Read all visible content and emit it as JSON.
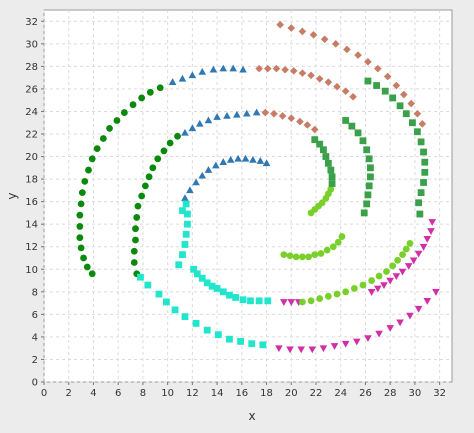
{
  "chart_data": {
    "type": "scatter",
    "title": "",
    "xlabel": "x",
    "ylabel": "y",
    "xlim": [
      0,
      33
    ],
    "ylim": [
      0,
      33
    ],
    "xticks": [
      0,
      2,
      4,
      6,
      8,
      10,
      12,
      14,
      16,
      18,
      20,
      22,
      24,
      26,
      28,
      30,
      32
    ],
    "yticks": [
      0,
      2,
      4,
      6,
      8,
      10,
      12,
      14,
      16,
      18,
      20,
      22,
      24,
      26,
      28,
      30,
      32
    ],
    "grid": true,
    "legend": "none",
    "series": [
      {
        "marker": "circle",
        "color": "#0a8a0a",
        "points": [
          [
            3.9,
            9.6
          ],
          [
            3.5,
            10.2
          ],
          [
            3.2,
            11.0
          ],
          [
            3.0,
            11.9
          ],
          [
            2.9,
            12.8
          ],
          [
            2.9,
            13.8
          ],
          [
            2.9,
            14.8
          ],
          [
            3.0,
            15.8
          ],
          [
            3.1,
            16.8
          ],
          [
            3.3,
            17.8
          ],
          [
            3.6,
            18.8
          ],
          [
            3.9,
            19.8
          ],
          [
            4.3,
            20.7
          ],
          [
            4.8,
            21.6
          ],
          [
            5.3,
            22.5
          ],
          [
            5.9,
            23.2
          ],
          [
            6.5,
            23.9
          ],
          [
            7.2,
            24.6
          ],
          [
            7.9,
            25.2
          ],
          [
            8.6,
            25.7
          ],
          [
            9.4,
            26.1
          ],
          [
            7.5,
            9.6
          ],
          [
            7.3,
            10.6
          ],
          [
            7.3,
            11.6
          ],
          [
            7.4,
            12.6
          ],
          [
            7.4,
            13.6
          ],
          [
            7.5,
            14.6
          ],
          [
            7.6,
            15.6
          ],
          [
            7.9,
            16.5
          ],
          [
            8.2,
            17.4
          ],
          [
            8.5,
            18.2
          ],
          [
            8.8,
            19.0
          ],
          [
            9.2,
            19.8
          ],
          [
            9.7,
            20.5
          ],
          [
            10.2,
            21.2
          ],
          [
            10.8,
            21.8
          ]
        ]
      },
      {
        "marker": "triangle-up",
        "color": "#2f78b4",
        "points": [
          [
            10.4,
            26.6
          ],
          [
            11.2,
            26.9
          ],
          [
            12.0,
            27.2
          ],
          [
            12.8,
            27.5
          ],
          [
            13.7,
            27.7
          ],
          [
            14.5,
            27.8
          ],
          [
            15.3,
            27.8
          ],
          [
            16.1,
            27.7
          ],
          [
            11.4,
            22.1
          ],
          [
            12.0,
            22.5
          ],
          [
            12.6,
            22.9
          ],
          [
            13.3,
            23.2
          ],
          [
            14.0,
            23.5
          ],
          [
            14.8,
            23.6
          ],
          [
            15.6,
            23.7
          ],
          [
            16.4,
            23.8
          ],
          [
            17.2,
            23.9
          ],
          [
            11.4,
            16.3
          ],
          [
            11.8,
            17.0
          ],
          [
            12.3,
            17.7
          ],
          [
            12.8,
            18.3
          ],
          [
            13.3,
            18.8
          ],
          [
            13.9,
            19.2
          ],
          [
            14.5,
            19.5
          ],
          [
            15.1,
            19.7
          ],
          [
            15.7,
            19.8
          ],
          [
            16.3,
            19.8
          ],
          [
            16.9,
            19.7
          ],
          [
            17.5,
            19.6
          ],
          [
            18.0,
            19.4
          ]
        ]
      },
      {
        "marker": "square",
        "color": "#22e6cc",
        "points": [
          [
            10.9,
            10.4
          ],
          [
            11.2,
            11.3
          ],
          [
            11.4,
            12.2
          ],
          [
            11.5,
            13.1
          ],
          [
            11.6,
            14.0
          ],
          [
            11.6,
            14.9
          ],
          [
            11.5,
            15.8
          ],
          [
            9.3,
            7.8
          ],
          [
            9.9,
            7.1
          ],
          [
            10.6,
            6.4
          ],
          [
            11.4,
            5.8
          ],
          [
            12.3,
            5.2
          ],
          [
            13.2,
            4.6
          ],
          [
            14.1,
            4.2
          ],
          [
            15.0,
            3.8
          ],
          [
            15.9,
            3.6
          ],
          [
            16.8,
            3.4
          ],
          [
            17.7,
            3.3
          ],
          [
            12.1,
            10.0
          ],
          [
            12.4,
            9.6
          ],
          [
            12.8,
            9.2
          ],
          [
            13.2,
            8.8
          ],
          [
            13.6,
            8.5
          ],
          [
            14.0,
            8.3
          ],
          [
            14.5,
            8.0
          ],
          [
            15.0,
            7.7
          ],
          [
            15.5,
            7.5
          ],
          [
            16.1,
            7.3
          ],
          [
            16.7,
            7.2
          ],
          [
            17.4,
            7.2
          ],
          [
            18.1,
            7.2
          ],
          [
            7.8,
            9.3
          ],
          [
            8.4,
            8.6
          ],
          [
            11.2,
            15.2
          ]
        ]
      },
      {
        "marker": "triangle-down",
        "color": "#d02fa8",
        "points": [
          [
            19.4,
            7.1
          ],
          [
            20.0,
            7.1
          ],
          [
            20.6,
            7.1
          ],
          [
            19.0,
            3.0
          ],
          [
            19.9,
            2.9
          ],
          [
            20.8,
            2.9
          ],
          [
            21.7,
            2.9
          ],
          [
            22.6,
            3.0
          ],
          [
            23.5,
            3.2
          ],
          [
            24.4,
            3.4
          ],
          [
            25.3,
            3.6
          ],
          [
            26.2,
            3.9
          ],
          [
            27.1,
            4.3
          ],
          [
            28.0,
            4.8
          ],
          [
            28.8,
            5.3
          ],
          [
            29.6,
            5.9
          ],
          [
            30.3,
            6.5
          ],
          [
            31.0,
            7.2
          ],
          [
            31.7,
            8.0
          ],
          [
            26.5,
            8.0
          ],
          [
            27.0,
            8.3
          ],
          [
            27.5,
            8.6
          ],
          [
            28.0,
            9.0
          ],
          [
            28.5,
            9.4
          ],
          [
            29.0,
            9.8
          ],
          [
            29.5,
            10.3
          ],
          [
            29.9,
            10.8
          ],
          [
            30.3,
            11.4
          ],
          [
            30.7,
            12.0
          ],
          [
            31.0,
            12.7
          ],
          [
            31.3,
            13.4
          ],
          [
            31.4,
            14.2
          ]
        ]
      },
      {
        "marker": "circle",
        "color": "#7ad02a",
        "points": [
          [
            20.9,
            7.1
          ],
          [
            21.6,
            7.2
          ],
          [
            22.3,
            7.4
          ],
          [
            23.0,
            7.6
          ],
          [
            23.7,
            7.8
          ],
          [
            24.4,
            8.0
          ],
          [
            25.1,
            8.3
          ],
          [
            25.8,
            8.6
          ],
          [
            26.5,
            9.0
          ],
          [
            27.1,
            9.4
          ],
          [
            27.7,
            9.8
          ],
          [
            28.2,
            10.3
          ],
          [
            28.6,
            10.8
          ],
          [
            29.0,
            11.3
          ],
          [
            29.3,
            11.8
          ],
          [
            29.6,
            12.3
          ],
          [
            19.4,
            11.3
          ],
          [
            19.9,
            11.2
          ],
          [
            20.4,
            11.1
          ],
          [
            20.9,
            11.1
          ],
          [
            21.4,
            11.1
          ],
          [
            21.9,
            11.3
          ],
          [
            22.4,
            11.4
          ],
          [
            22.9,
            11.7
          ],
          [
            23.4,
            12.0
          ],
          [
            23.8,
            12.4
          ],
          [
            24.1,
            12.9
          ],
          [
            21.6,
            15.0
          ],
          [
            21.9,
            15.3
          ],
          [
            22.2,
            15.6
          ],
          [
            22.5,
            15.9
          ],
          [
            22.8,
            16.3
          ],
          [
            23.0,
            16.7
          ],
          [
            23.2,
            17.1
          ]
        ]
      },
      {
        "marker": "square",
        "color": "#3aa04a",
        "points": [
          [
            23.3,
            17.6
          ],
          [
            23.3,
            18.2
          ],
          [
            23.2,
            18.8
          ],
          [
            23.0,
            19.4
          ],
          [
            22.8,
            20.0
          ],
          [
            22.6,
            20.6
          ],
          [
            22.3,
            21.1
          ],
          [
            21.9,
            21.5
          ],
          [
            25.9,
            15.0
          ],
          [
            26.1,
            15.8
          ],
          [
            26.2,
            16.6
          ],
          [
            26.3,
            17.4
          ],
          [
            26.4,
            18.2
          ],
          [
            26.4,
            19.0
          ],
          [
            26.3,
            19.8
          ],
          [
            26.1,
            20.6
          ],
          [
            25.8,
            21.4
          ],
          [
            25.4,
            22.1
          ],
          [
            24.9,
            22.7
          ],
          [
            24.4,
            23.2
          ],
          [
            30.5,
            16.8
          ],
          [
            30.7,
            17.7
          ],
          [
            30.8,
            18.6
          ],
          [
            30.8,
            19.5
          ],
          [
            30.7,
            20.4
          ],
          [
            30.5,
            21.3
          ],
          [
            30.2,
            22.2
          ],
          [
            29.8,
            23.0
          ],
          [
            29.3,
            23.8
          ],
          [
            28.8,
            24.5
          ],
          [
            28.2,
            25.2
          ],
          [
            27.6,
            25.8
          ],
          [
            26.9,
            26.3
          ],
          [
            26.2,
            26.7
          ],
          [
            30.3,
            15.9
          ],
          [
            30.4,
            14.9
          ]
        ]
      },
      {
        "marker": "diamond",
        "color": "#c77d65",
        "points": [
          [
            17.4,
            27.8
          ],
          [
            18.1,
            27.8
          ],
          [
            18.8,
            27.8
          ],
          [
            19.5,
            27.7
          ],
          [
            20.2,
            27.6
          ],
          [
            20.9,
            27.4
          ],
          [
            21.6,
            27.2
          ],
          [
            22.3,
            26.9
          ],
          [
            23.0,
            26.6
          ],
          [
            23.7,
            26.2
          ],
          [
            24.4,
            25.8
          ],
          [
            25.0,
            25.3
          ],
          [
            17.9,
            23.9
          ],
          [
            18.6,
            23.8
          ],
          [
            19.3,
            23.6
          ],
          [
            20.0,
            23.4
          ],
          [
            20.7,
            23.1
          ],
          [
            21.3,
            22.8
          ],
          [
            21.9,
            22.4
          ],
          [
            19.1,
            31.7
          ],
          [
            20.0,
            31.4
          ],
          [
            20.9,
            31.1
          ],
          [
            21.8,
            30.8
          ],
          [
            22.7,
            30.4
          ],
          [
            23.6,
            30.0
          ],
          [
            24.5,
            29.5
          ],
          [
            25.4,
            29.0
          ],
          [
            26.2,
            28.4
          ],
          [
            27.0,
            27.8
          ],
          [
            27.8,
            27.1
          ],
          [
            28.5,
            26.3
          ],
          [
            29.1,
            25.5
          ],
          [
            29.7,
            24.7
          ],
          [
            30.2,
            23.8
          ],
          [
            30.6,
            22.9
          ]
        ]
      }
    ]
  }
}
